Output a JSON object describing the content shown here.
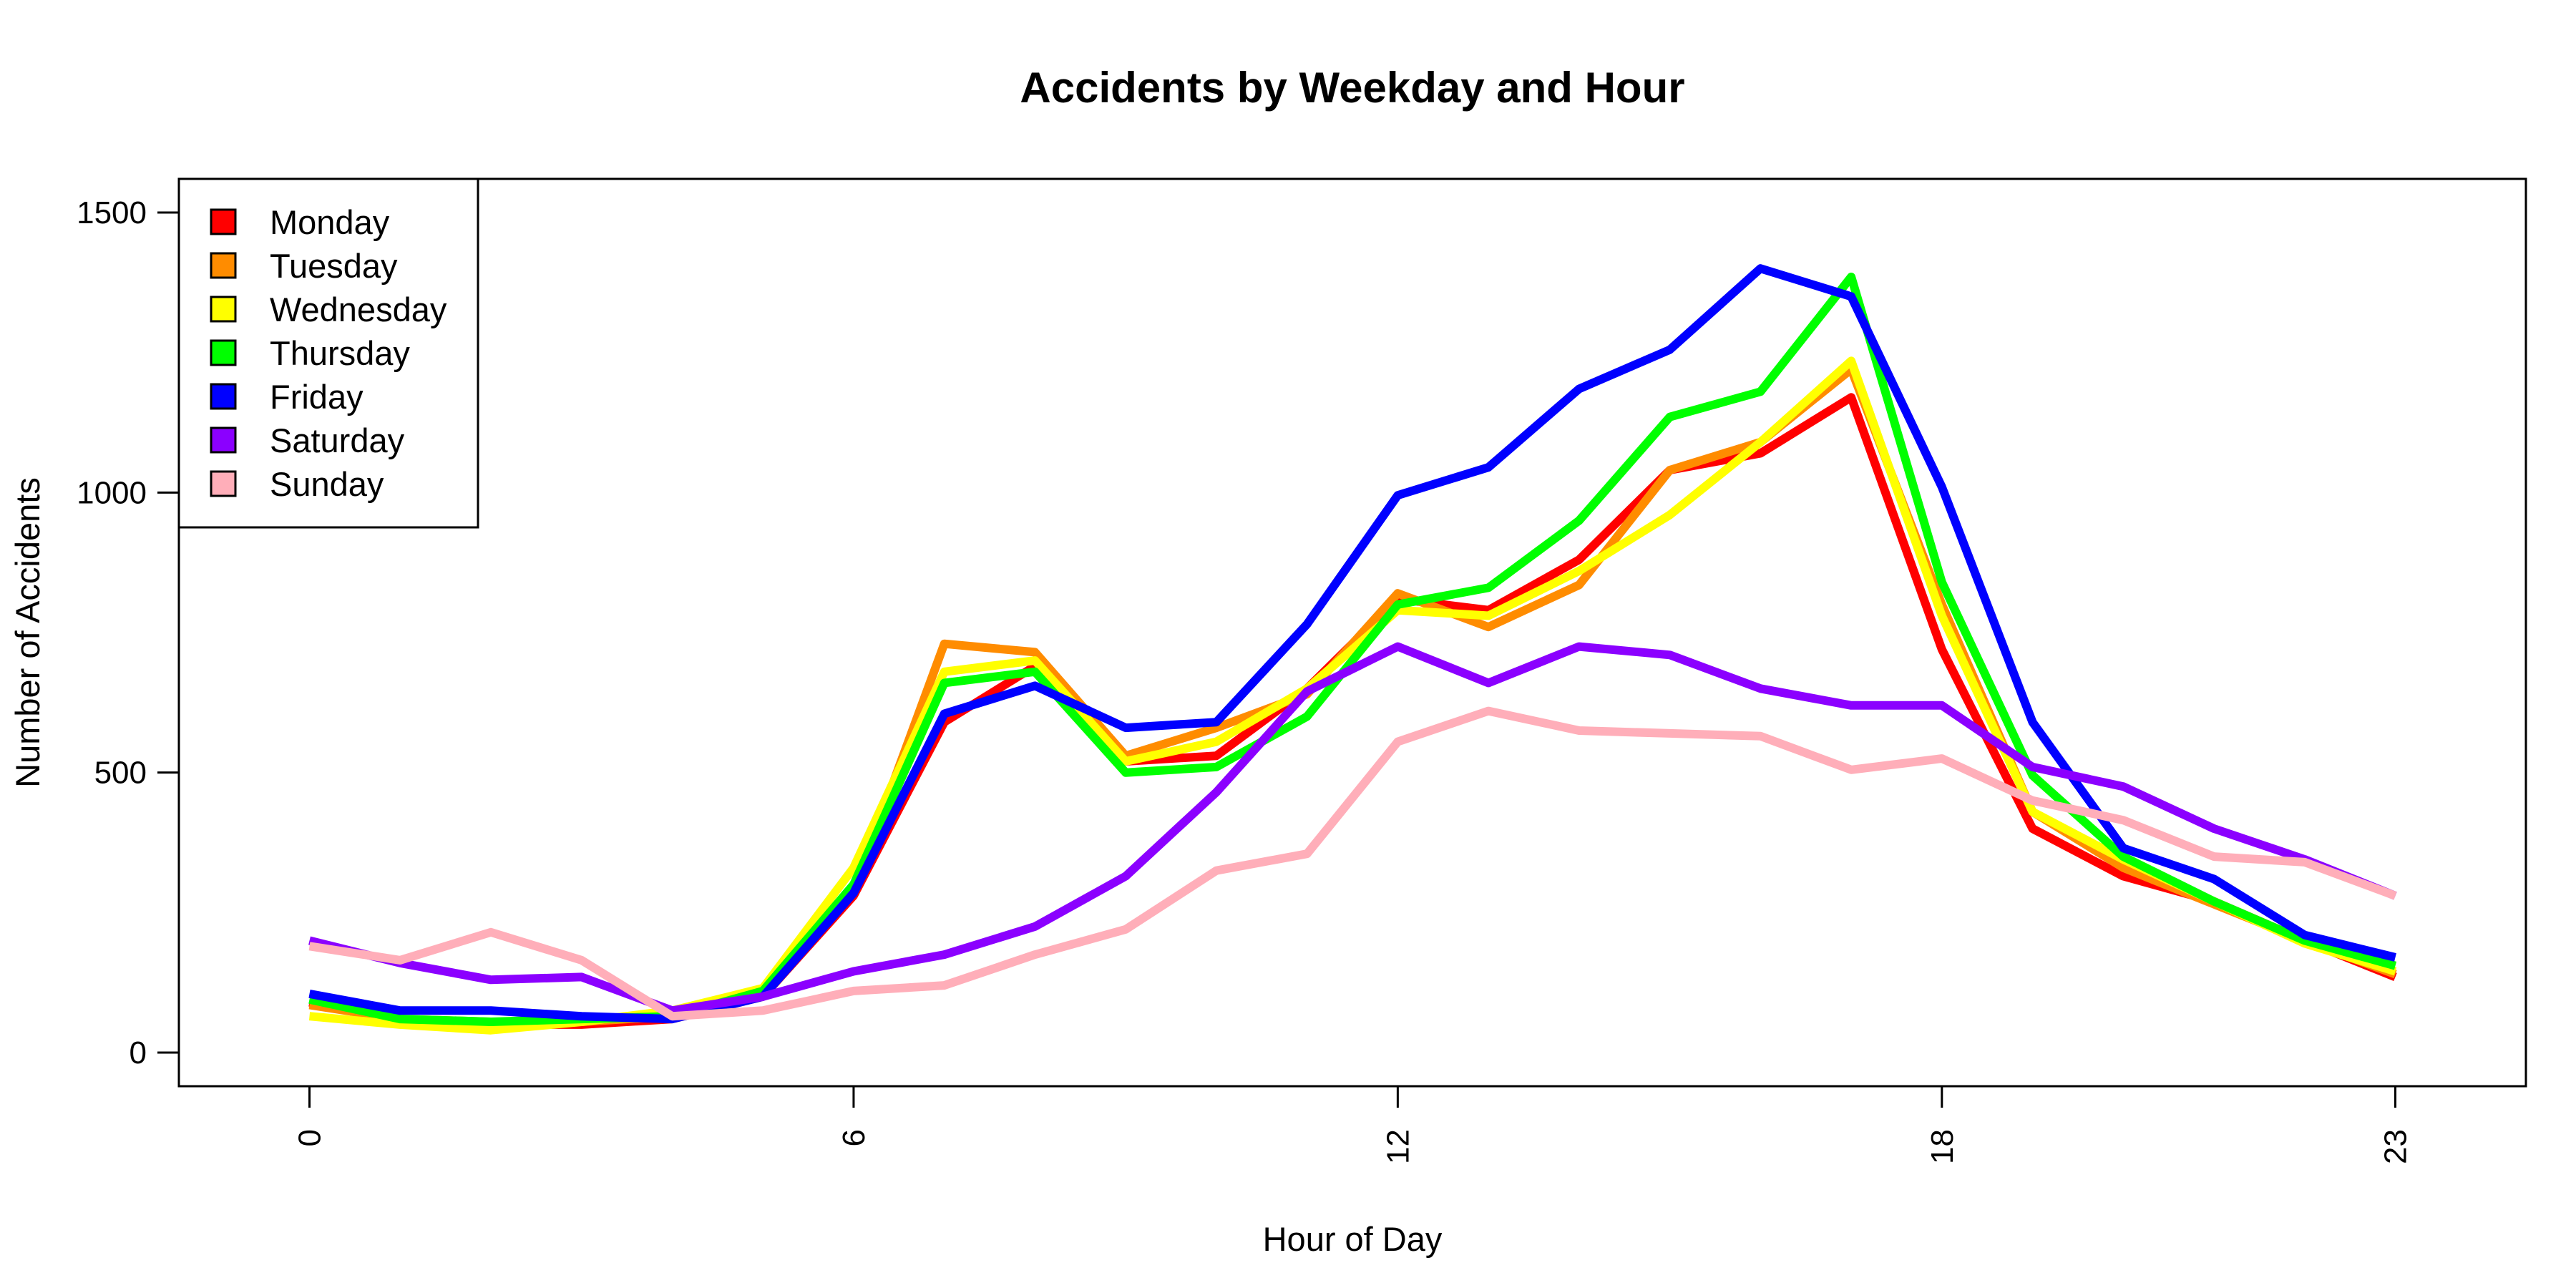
{
  "chart_data": {
    "type": "line",
    "title": "Accidents by Weekday and Hour",
    "xlabel": "Hour of Day",
    "ylabel": "Number of Accidents",
    "x": [
      0,
      1,
      2,
      3,
      4,
      5,
      6,
      7,
      8,
      9,
      10,
      11,
      12,
      13,
      14,
      15,
      16,
      17,
      18,
      19,
      20,
      21,
      22,
      23
    ],
    "x_ticks": [
      0,
      6,
      12,
      18,
      23
    ],
    "y_ticks": [
      0,
      500,
      1000,
      1500
    ],
    "xlim": [
      -1.44,
      24.44
    ],
    "ylim": [
      -60,
      1560
    ],
    "grid": false,
    "legend_position": "top-left",
    "series": [
      {
        "name": "Monday",
        "color": "#FF0000",
        "values": [
          90,
          55,
          50,
          50,
          60,
          100,
          280,
          590,
          690,
          520,
          530,
          650,
          810,
          790,
          880,
          1040,
          1070,
          1170,
          720,
          400,
          315,
          270,
          200,
          135
        ]
      },
      {
        "name": "Tuesday",
        "color": "#FF8C00",
        "values": [
          85,
          60,
          55,
          55,
          65,
          110,
          290,
          730,
          715,
          530,
          580,
          640,
          820,
          760,
          835,
          1040,
          1090,
          1220,
          800,
          430,
          330,
          265,
          200,
          140
        ]
      },
      {
        "name": "Wednesday",
        "color": "#FFFF00",
        "values": [
          65,
          50,
          40,
          55,
          75,
          115,
          330,
          680,
          700,
          520,
          555,
          650,
          790,
          780,
          860,
          960,
          1090,
          1235,
          780,
          430,
          345,
          270,
          195,
          145
        ]
      },
      {
        "name": "Thursday",
        "color": "#00FF00",
        "values": [
          95,
          60,
          55,
          60,
          65,
          110,
          300,
          660,
          680,
          500,
          510,
          600,
          800,
          830,
          950,
          1135,
          1180,
          1385,
          840,
          495,
          350,
          270,
          200,
          155
        ]
      },
      {
        "name": "Friday",
        "color": "#0000FF",
        "values": [
          105,
          75,
          75,
          65,
          60,
          100,
          285,
          605,
          655,
          580,
          590,
          765,
          995,
          1045,
          1185,
          1255,
          1400,
          1350,
          1010,
          590,
          365,
          310,
          210,
          170
        ]
      },
      {
        "name": "Saturday",
        "color": "#8B00FF",
        "values": [
          200,
          160,
          130,
          135,
          75,
          100,
          145,
          175,
          225,
          315,
          465,
          645,
          725,
          660,
          725,
          710,
          650,
          620,
          620,
          510,
          475,
          400,
          345,
          280
        ]
      },
      {
        "name": "Sunday",
        "color": "#FFAEB9",
        "values": [
          190,
          165,
          215,
          165,
          65,
          75,
          110,
          120,
          175,
          220,
          325,
          355,
          555,
          610,
          575,
          570,
          565,
          505,
          525,
          450,
          415,
          350,
          340,
          280
        ]
      }
    ]
  }
}
